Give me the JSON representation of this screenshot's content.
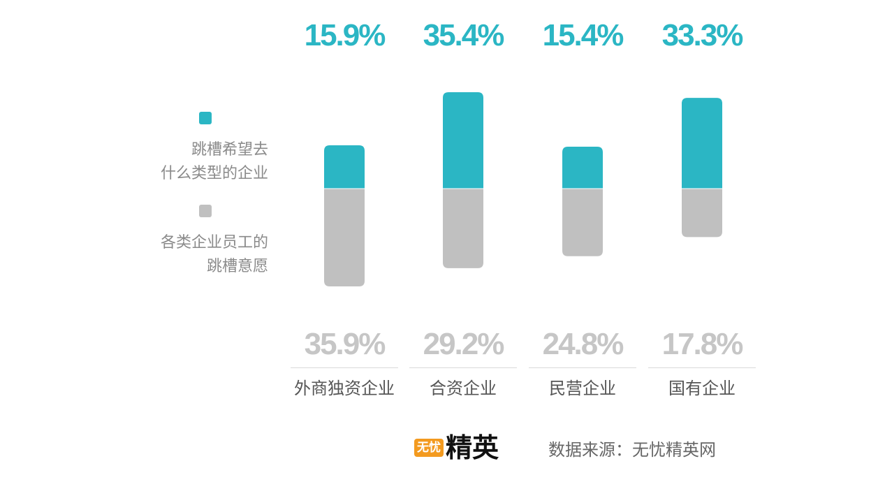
{
  "colors": {
    "teal": "#2bb6c4",
    "gray": "#c0c0c0",
    "teal_text": "#2bb6c4",
    "gray_text": "#c6c6c6"
  },
  "legend": {
    "teal_label_line1": "跳槽希望去",
    "teal_label_line2": "什么类型的企业",
    "gray_label_line1": "各类企业员工的",
    "gray_label_line2": "跳槽意愿"
  },
  "chart_data": {
    "type": "bar",
    "categories": [
      "外商独资企业",
      "合资企业",
      "民营企业",
      "国有企业"
    ],
    "series": [
      {
        "name": "跳槽希望去什么类型的企业",
        "values": [
          15.9,
          35.4,
          15.4,
          33.3
        ],
        "labels": [
          "15.9%",
          "35.4%",
          "15.4%",
          "33.3%"
        ]
      },
      {
        "name": "各类企业员工的跳槽意愿",
        "values": [
          35.9,
          29.2,
          24.8,
          17.8
        ],
        "labels": [
          "35.9%",
          "29.2%",
          "24.8%",
          "17.8%"
        ]
      }
    ],
    "title": "",
    "xlabel": "",
    "ylabel": ""
  },
  "footer": {
    "logo_box": "无忧",
    "logo_text": "精英",
    "source": "数据来源：无忧精英网"
  }
}
